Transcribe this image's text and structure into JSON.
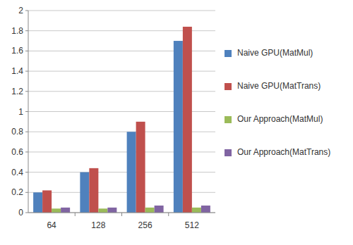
{
  "chart_data": {
    "type": "bar",
    "categories": [
      "64",
      "128",
      "256",
      "512"
    ],
    "series": [
      {
        "name": "Naive GPU(MatMul)",
        "color": "#4f81bd",
        "values": [
          0.2,
          0.4,
          0.8,
          1.7
        ]
      },
      {
        "name": "Naive GPU(MatTrans)",
        "color": "#c0504d",
        "values": [
          0.22,
          0.44,
          0.9,
          1.84
        ]
      },
      {
        "name": "Our Approach(MatMul)",
        "color": "#9bbb59",
        "values": [
          0.04,
          0.04,
          0.05,
          0.05
        ]
      },
      {
        "name": "Our Approach(MatTrans)",
        "color": "#8064a2",
        "values": [
          0.05,
          0.05,
          0.07,
          0.07
        ]
      }
    ],
    "ylim": [
      0,
      2
    ],
    "yticks": [
      0,
      0.2,
      0.4,
      0.6,
      0.8,
      1,
      1.2,
      1.4,
      1.6,
      1.8,
      2
    ],
    "grid": true,
    "legend": "right"
  }
}
